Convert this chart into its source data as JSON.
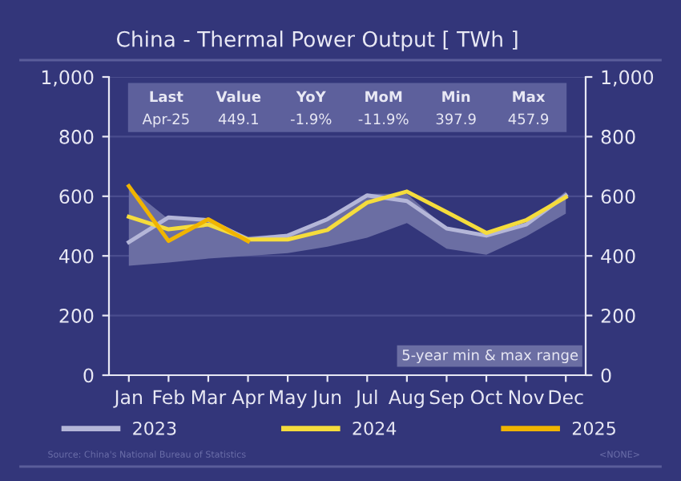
{
  "chart_data": {
    "type": "line",
    "title": "China - Thermal Power Output [ TWh ]",
    "categories": [
      "Jan",
      "Feb",
      "Mar",
      "Apr",
      "May",
      "Jun",
      "Jul",
      "Aug",
      "Sep",
      "Oct",
      "Nov",
      "Dec"
    ],
    "series": [
      {
        "type": "area",
        "color": "#6b6ea3",
        "values": [
          null,
          null,
          null,
          null,
          null,
          null,
          null,
          null,
          null,
          null,
          null,
          null
        ],
        "upper": [
          630,
          523,
          520,
          465,
          474,
          529,
          608,
          608,
          492,
          468,
          510,
          616
        ],
        "lower": [
          367,
          378,
          391,
          400,
          409,
          431,
          461,
          510,
          424,
          404,
          465,
          542
        ]
      },
      {
        "name": "2023",
        "color": "#b4b6d8",
        "values": [
          446,
          529,
          520,
          455,
          468,
          523,
          603,
          584,
          492,
          468,
          505,
          603
        ]
      },
      {
        "name": "2024",
        "color": "#f5dc3c",
        "values": [
          531,
          489,
          505,
          455,
          455,
          487,
          579,
          616,
          547,
          477,
          520,
          597
        ]
      },
      {
        "name": "2025",
        "color": "#f0b400",
        "values": [
          634,
          450,
          523,
          449,
          null,
          null,
          null,
          null,
          null,
          null,
          null,
          null
        ]
      }
    ],
    "ylim": [
      0,
      1000
    ],
    "yticks": [
      0,
      {
        "value": 200,
        "label": "200"
      },
      {
        "value": 400,
        "label": "400"
      },
      {
        "value": 600,
        "label": "600"
      },
      {
        "value": 800,
        "label": "800"
      },
      {
        "value": 1000,
        "label": "1,000"
      }
    ],
    "y2lim": [
      0,
      1000
    ],
    "y2ticks": [
      0,
      {
        "value": 200,
        "label": "200"
      },
      {
        "value": 400,
        "label": "400"
      },
      {
        "value": 600,
        "label": "600"
      },
      {
        "value": 800,
        "label": "800"
      },
      {
        "value": 1000,
        "label": "1,000"
      }
    ],
    "grid": "y",
    "legend": "bottom",
    "line_style": "solid",
    "marker": "none",
    "annotations": [
      "Last",
      "Value",
      "YoY",
      "MoM",
      "Min",
      "Max",
      "Apr-25",
      "449.1",
      "-1.9%",
      "-11.9%",
      "397.9",
      "457.9",
      "Source: China's National Bureau of Statistics",
      "<NONE>",
      "5-year min & max range"
    ]
  }
}
